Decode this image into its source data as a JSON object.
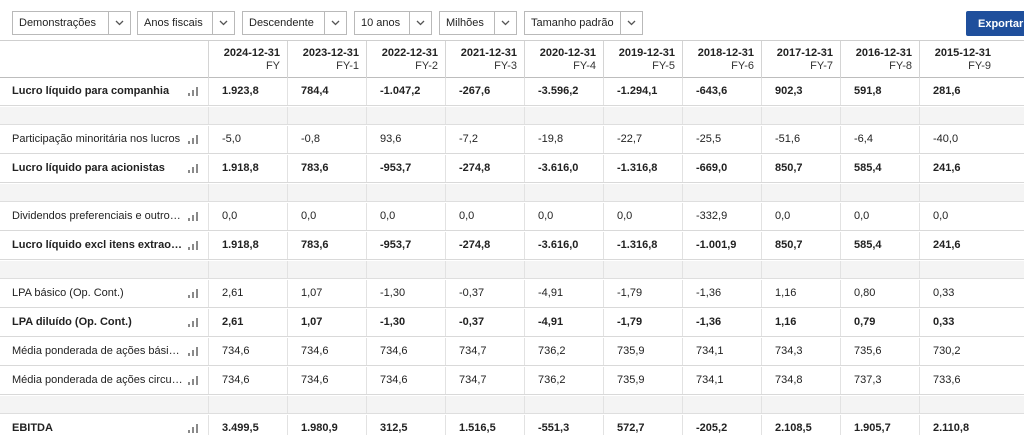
{
  "toolbar": {
    "dropdowns": [
      "Demonstrações",
      "Anos fiscais",
      "Descendente",
      "10 anos",
      "Milhões",
      "Tamanho padrão"
    ],
    "export_label": "Exportar"
  },
  "columns": [
    {
      "date": "2024-12-31",
      "fy": "FY"
    },
    {
      "date": "2023-12-31",
      "fy": "FY-1"
    },
    {
      "date": "2022-12-31",
      "fy": "FY-2"
    },
    {
      "date": "2021-12-31",
      "fy": "FY-3"
    },
    {
      "date": "2020-12-31",
      "fy": "FY-4"
    },
    {
      "date": "2019-12-31",
      "fy": "FY-5"
    },
    {
      "date": "2018-12-31",
      "fy": "FY-6"
    },
    {
      "date": "2017-12-31",
      "fy": "FY-7"
    },
    {
      "date": "2016-12-31",
      "fy": "FY-8"
    },
    {
      "date": "2015-12-31",
      "fy": "FY-9"
    }
  ],
  "rows": [
    {
      "label": "Lucro líquido para companhia",
      "bold": true,
      "values": [
        "1.923,8",
        "784,4",
        "-1.047,2",
        "-267,6",
        "-3.596,2",
        "-1.294,1",
        "-643,6",
        "902,3",
        "591,8",
        "281,6"
      ]
    },
    {
      "blank": true
    },
    {
      "label": "Participação minoritária nos lucros",
      "bold": false,
      "values": [
        "-5,0",
        "-0,8",
        "93,6",
        "-7,2",
        "-19,8",
        "-22,7",
        "-25,5",
        "-51,6",
        "-6,4",
        "-40,0"
      ]
    },
    {
      "label": "Lucro líquido para acionistas",
      "bold": true,
      "values": [
        "1.918,8",
        "783,6",
        "-953,7",
        "-274,8",
        "-3.616,0",
        "-1.316,8",
        "-669,0",
        "850,7",
        "585,4",
        "241,6"
      ]
    },
    {
      "blank": true
    },
    {
      "label": "Dividendos preferenciais e outros ajustes",
      "bold": false,
      "values": [
        "0,0",
        "0,0",
        "0,0",
        "0,0",
        "0,0",
        "0,0",
        "-332,9",
        "0,0",
        "0,0",
        "0,0"
      ]
    },
    {
      "label": "Lucro líquido excl itens extraordinários",
      "bold": true,
      "values": [
        "1.918,8",
        "783,6",
        "-953,7",
        "-274,8",
        "-3.616,0",
        "-1.316,8",
        "-1.001,9",
        "850,7",
        "585,4",
        "241,6"
      ]
    },
    {
      "blank": true
    },
    {
      "label": "LPA básico (Op. Cont.)",
      "bold": false,
      "values": [
        "2,61",
        "1,07",
        "-1,30",
        "-0,37",
        "-4,91",
        "-1,79",
        "-1,36",
        "1,16",
        "0,80",
        "0,33"
      ]
    },
    {
      "label": "LPA diluído (Op. Cont.)",
      "bold": true,
      "values": [
        "2,61",
        "1,07",
        "-1,30",
        "-0,37",
        "-4,91",
        "-1,79",
        "-1,36",
        "1,16",
        "0,79",
        "0,33"
      ]
    },
    {
      "label": "Média ponderada de ações básicas",
      "bold": false,
      "values": [
        "734,6",
        "734,6",
        "734,6",
        "734,7",
        "736,2",
        "735,9",
        "734,1",
        "734,3",
        "735,6",
        "730,2"
      ]
    },
    {
      "label": "Média ponderada de ações circulantes",
      "bold": false,
      "values": [
        "734,6",
        "734,6",
        "734,6",
        "734,7",
        "736,2",
        "735,9",
        "734,1",
        "734,8",
        "737,3",
        "733,6"
      ]
    },
    {
      "blank": true
    },
    {
      "label": "EBITDA",
      "bold": true,
      "values": [
        "3.499,5",
        "1.980,9",
        "312,5",
        "1.516,5",
        "-551,3",
        "572,7",
        "-205,2",
        "2.108,5",
        "1.905,7",
        "2.110,8"
      ]
    }
  ]
}
